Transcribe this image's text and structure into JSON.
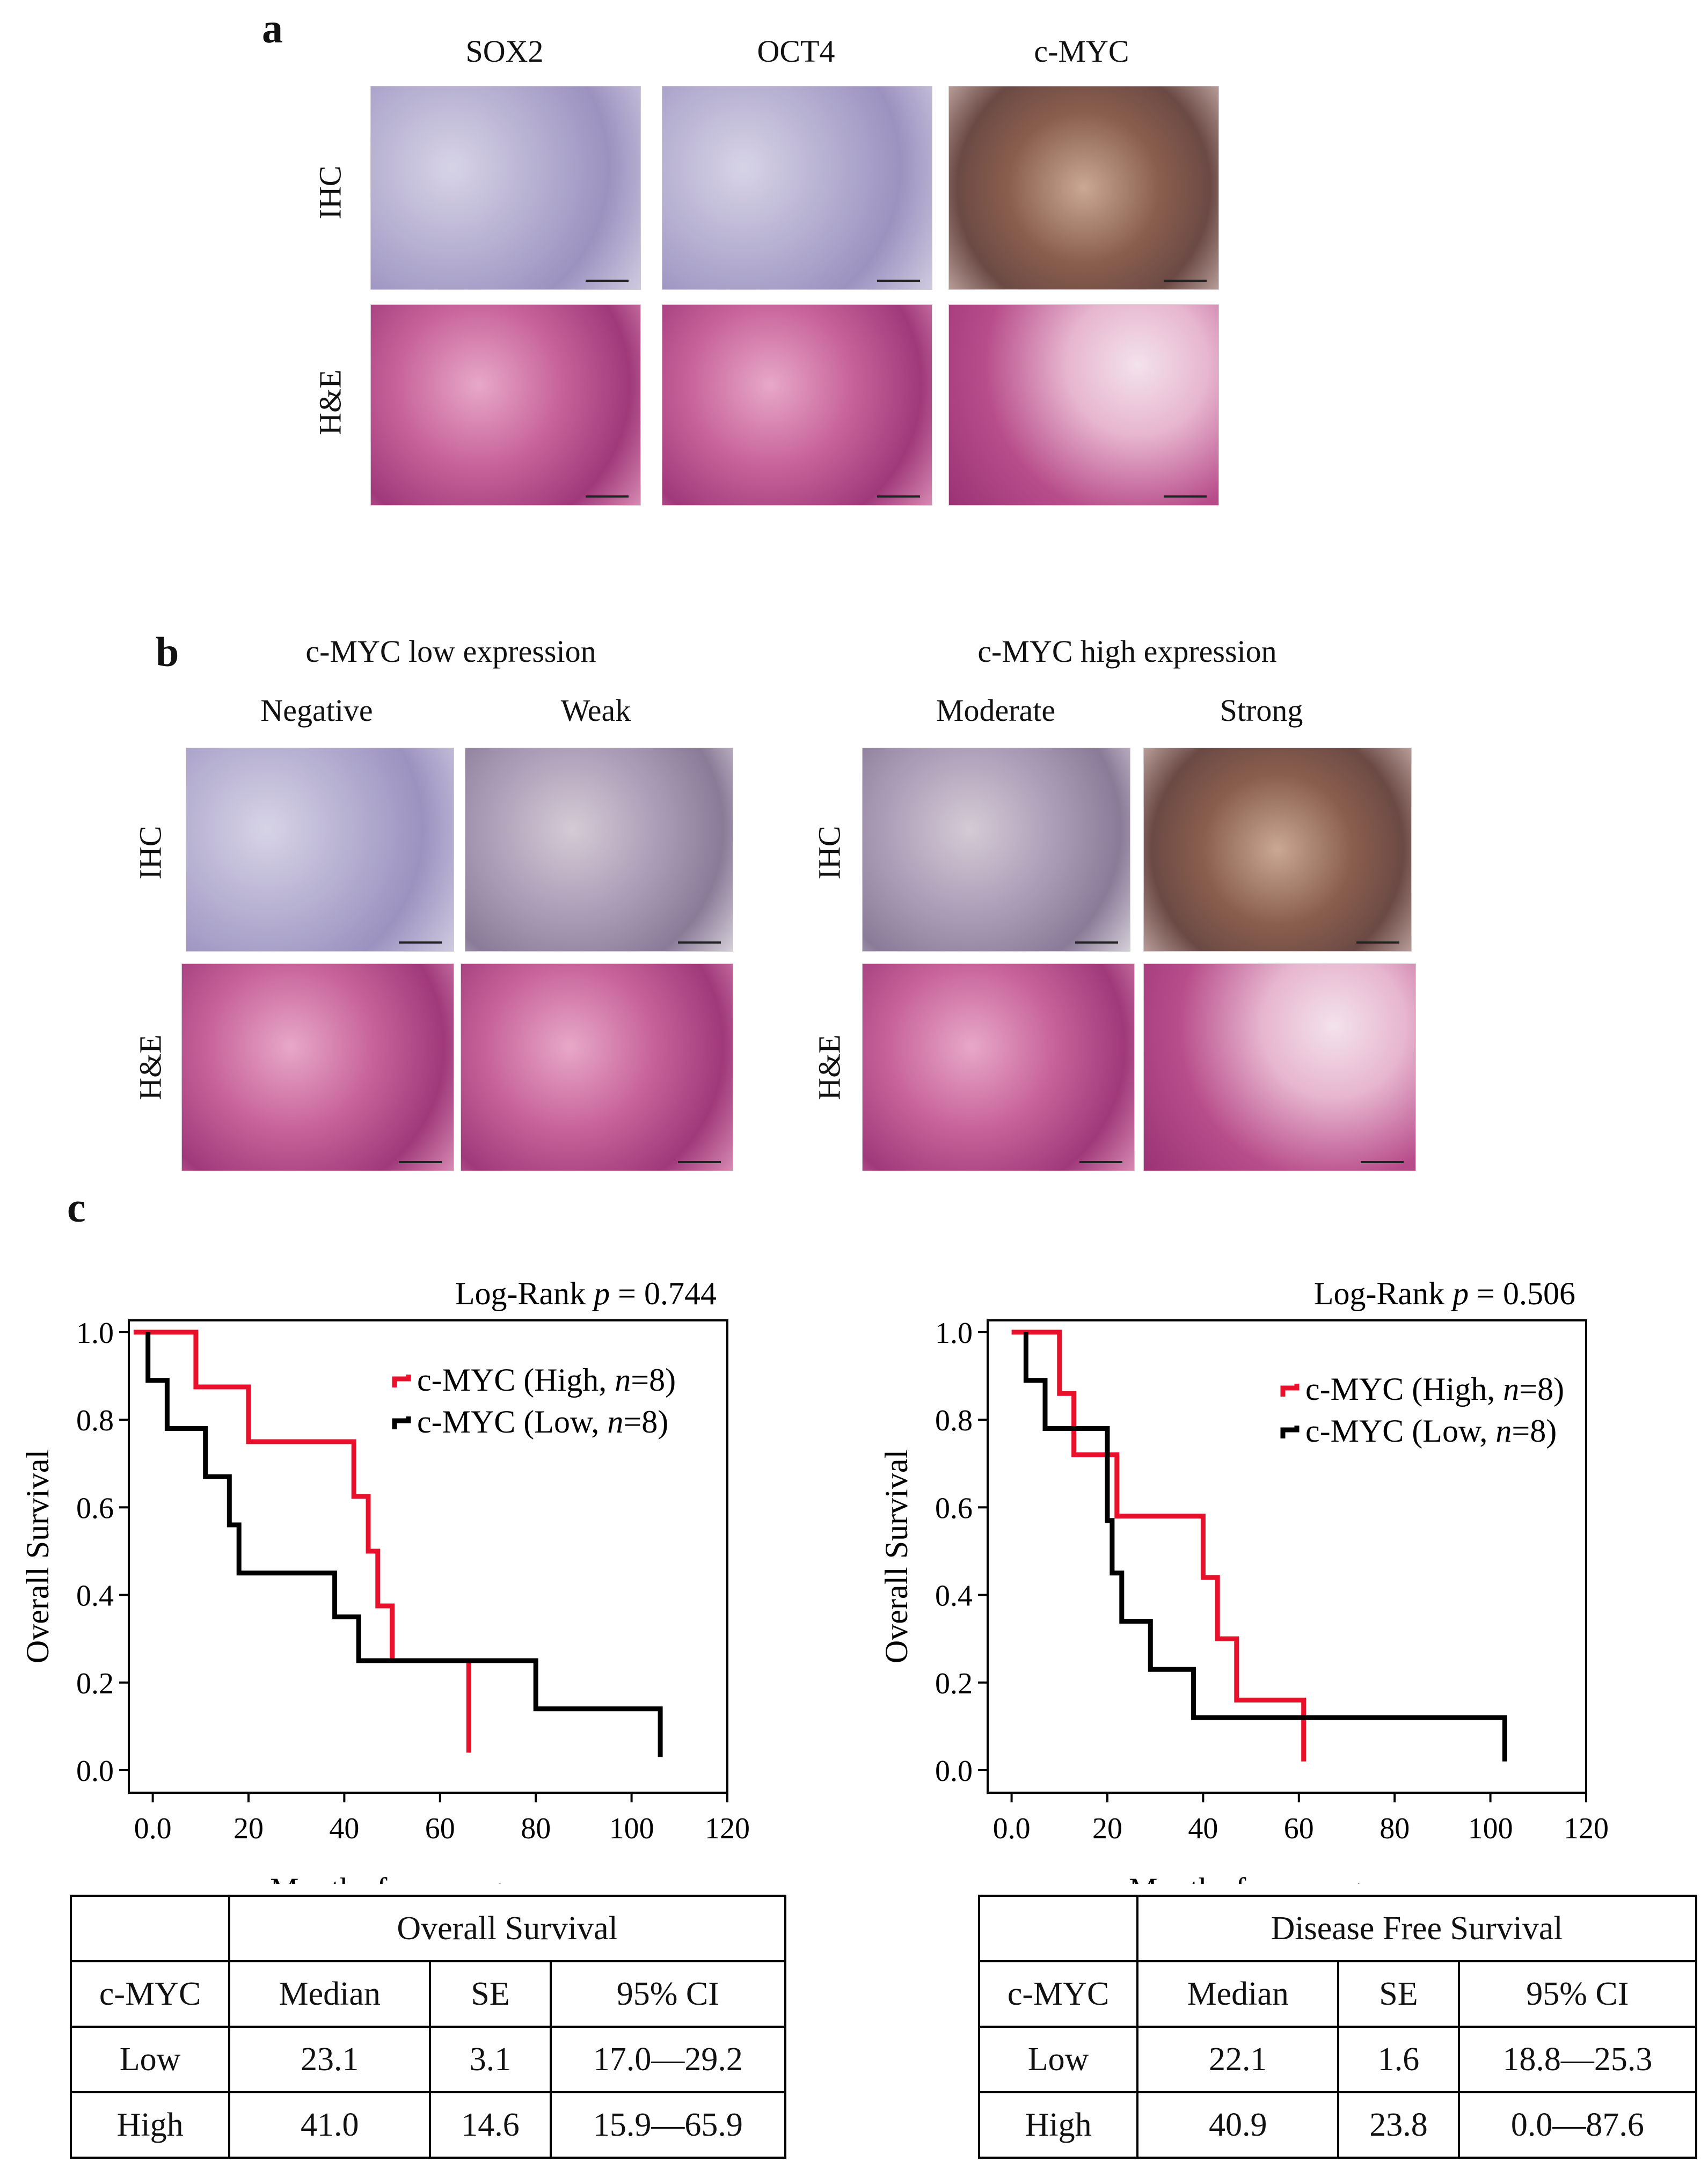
{
  "panel_a": {
    "letter": "a",
    "columns": [
      "SOX2",
      "OCT4",
      "c-MYC"
    ],
    "rows": [
      "IHC",
      "H&E"
    ]
  },
  "panel_b": {
    "letter": "b",
    "group_low": "c-MYC low expression",
    "group_high": "c-MYC high expression",
    "columns": [
      "Negative",
      "Weak",
      "Moderate",
      "Strong"
    ],
    "rows": [
      "IHC",
      "H&E"
    ]
  },
  "panel_c": {
    "letter": "c",
    "legend_high": "c-MYC (High, ",
    "legend_low": "c-MYC (Low, ",
    "legend_n": "n",
    "legend_n_value": "=8)",
    "colors": {
      "high": "#e8102a",
      "low": "#000000"
    }
  },
  "chart_data": [
    {
      "type": "line",
      "subtype": "kaplan-meier",
      "title": "",
      "annotation": "Log-Rank p = 0.744",
      "annotation_prefix": "Log-Rank ",
      "annotation_p": "p",
      "annotation_value": " = 0.744",
      "xlabel": "Months from surgery",
      "ylabel": "Overall Survival",
      "xlim": [
        -5,
        120
      ],
      "ylim": [
        0,
        1.0
      ],
      "xticks": [
        "0.0",
        "20",
        "40",
        "60",
        "80",
        "100",
        "120"
      ],
      "yticks": [
        "0.0",
        "0.2",
        "0.4",
        "0.6",
        "0.8",
        "1.0"
      ],
      "series": [
        {
          "name": "c-MYC (High, n=8)",
          "color": "#e8102a",
          "x": [
            -4,
            9,
            9,
            20,
            20,
            42,
            42,
            45,
            45,
            47,
            47,
            50,
            50,
            66,
            66
          ],
          "y": [
            1.0,
            1.0,
            0.875,
            0.875,
            0.75,
            0.75,
            0.625,
            0.625,
            0.5,
            0.5,
            0.375,
            0.375,
            0.25,
            0.25,
            0.04
          ]
        },
        {
          "name": "c-MYC (Low, n=8)",
          "color": "#000000",
          "x": [
            -1,
            -1,
            3,
            3,
            11,
            11,
            16,
            16,
            18,
            18,
            38,
            38,
            43,
            43,
            80,
            80,
            106,
            106
          ],
          "y": [
            1.0,
            0.89,
            0.89,
            0.78,
            0.78,
            0.67,
            0.67,
            0.56,
            0.56,
            0.45,
            0.45,
            0.35,
            0.35,
            0.25,
            0.25,
            0.14,
            0.14,
            0.03
          ]
        }
      ]
    },
    {
      "type": "line",
      "subtype": "kaplan-meier",
      "title": "",
      "annotation": "Log-Rank p = 0.506",
      "annotation_prefix": "Log-Rank ",
      "annotation_p": "p",
      "annotation_value": " = 0.506",
      "xlabel": "Months from surgery",
      "ylabel": "Overall Survival",
      "xlim": [
        -5,
        120
      ],
      "ylim": [
        0,
        1.0
      ],
      "xticks": [
        "0.0",
        "20",
        "40",
        "60",
        "80",
        "100",
        "120"
      ],
      "yticks": [
        "0.0",
        "0.2",
        "0.4",
        "0.6",
        "0.8",
        "1.0"
      ],
      "series": [
        {
          "name": "c-MYC (High, n=8)",
          "color": "#e8102a",
          "x": [
            0,
            10,
            10,
            13,
            13,
            22,
            22,
            40,
            40,
            43,
            43,
            47,
            47,
            61,
            61
          ],
          "y": [
            1.0,
            1.0,
            0.86,
            0.86,
            0.72,
            0.72,
            0.58,
            0.58,
            0.44,
            0.44,
            0.3,
            0.3,
            0.16,
            0.16,
            0.02
          ]
        },
        {
          "name": "c-MYC (Low, n=8)",
          "color": "#000000",
          "x": [
            3,
            3,
            7,
            7,
            20,
            20,
            21,
            21,
            23,
            23,
            29,
            29,
            38,
            38,
            103,
            103
          ],
          "y": [
            1.0,
            0.89,
            0.89,
            0.78,
            0.78,
            0.57,
            0.57,
            0.45,
            0.45,
            0.34,
            0.34,
            0.23,
            0.23,
            0.12,
            0.12,
            0.02
          ]
        }
      ]
    },
    {
      "type": "table",
      "title": "Overall Survival",
      "columns": [
        "c-MYC",
        "Median",
        "SE",
        "95% CI"
      ],
      "rows": [
        [
          "Low",
          "23.1",
          "3.1",
          "17.0—29.2"
        ],
        [
          "High",
          "41.0",
          "14.6",
          "15.9—65.9"
        ]
      ]
    },
    {
      "type": "table",
      "title": "Disease Free Survival",
      "columns": [
        "c-MYC",
        "Median",
        "SE",
        "95% CI"
      ],
      "rows": [
        [
          "Low",
          "22.1",
          "1.6",
          "18.8—25.3"
        ],
        [
          "High",
          "40.9",
          "23.8",
          "0.0—87.6"
        ]
      ]
    }
  ]
}
